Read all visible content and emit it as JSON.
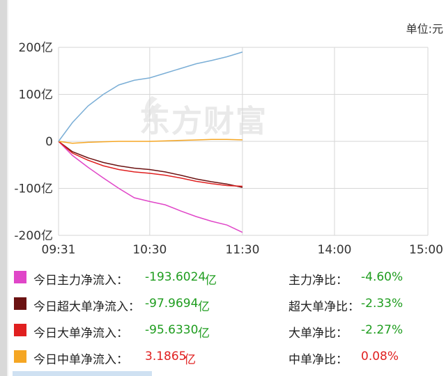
{
  "unit_label": "单位:元",
  "watermark": "东方财富",
  "chart_data": {
    "type": "line",
    "x_ticks": [
      "09:31",
      "10:30",
      "11:30",
      "14:00",
      "15:00"
    ],
    "y_ticks": [
      "200亿",
      "100亿",
      "0",
      "-100亿",
      "-200亿"
    ],
    "ylim": [
      -200,
      200
    ],
    "grid": true,
    "x": [
      "09:31",
      "09:40",
      "09:50",
      "10:00",
      "10:10",
      "10:20",
      "10:30",
      "10:40",
      "10:50",
      "11:00",
      "11:10",
      "11:20",
      "11:30"
    ],
    "series": [
      {
        "name": "今日主力净流入",
        "color": "#e046c8",
        "values": [
          0,
          -30,
          -55,
          -78,
          -100,
          -120,
          -128,
          -135,
          -148,
          -160,
          -170,
          -178,
          -193.6
        ]
      },
      {
        "name": "今日超大单净流入",
        "color": "#6b1212",
        "values": [
          0,
          -22,
          -35,
          -45,
          -52,
          -57,
          -60,
          -65,
          -72,
          -80,
          -86,
          -91,
          -98
        ]
      },
      {
        "name": "今日大单净流入",
        "color": "#e02020",
        "values": [
          0,
          -25,
          -40,
          -52,
          -60,
          -65,
          -68,
          -72,
          -78,
          -85,
          -90,
          -94,
          -95.6
        ]
      },
      {
        "name": "今日中单净流入",
        "color": "#f5a623",
        "values": [
          0,
          -4,
          -2,
          -1,
          0,
          0,
          0,
          1,
          2,
          3,
          4,
          4,
          3.2
        ]
      },
      {
        "name": "",
        "color": "#7aaed6",
        "values": [
          0,
          40,
          75,
          100,
          120,
          130,
          135,
          145,
          155,
          165,
          172,
          180,
          190
        ]
      }
    ]
  },
  "legend": [
    {
      "color": "#e046c8",
      "label": "今日主力净流入：",
      "value": "-193.6024",
      "unit": "亿",
      "sign": "neg",
      "ratio_label": "主力净比：",
      "ratio": "-4.60%",
      "ratio_sign": "neg"
    },
    {
      "color": "#6b1212",
      "label": "今日超大单净流入：",
      "value": "-97.9694",
      "unit": "亿",
      "sign": "neg",
      "ratio_label": "超大单净比：",
      "ratio": "-2.33%",
      "ratio_sign": "neg"
    },
    {
      "color": "#e02020",
      "label": "今日大单净流入：",
      "value": "-95.6330",
      "unit": "亿",
      "sign": "neg",
      "ratio_label": "大单净比：",
      "ratio": "-2.27%",
      "ratio_sign": "neg"
    },
    {
      "color": "#f5a623",
      "label": "今日中单净流入：",
      "value": "3.1865",
      "unit": "亿",
      "sign": "pos",
      "ratio_label": "中单净比：",
      "ratio": "0.08%",
      "ratio_sign": "pos"
    }
  ]
}
